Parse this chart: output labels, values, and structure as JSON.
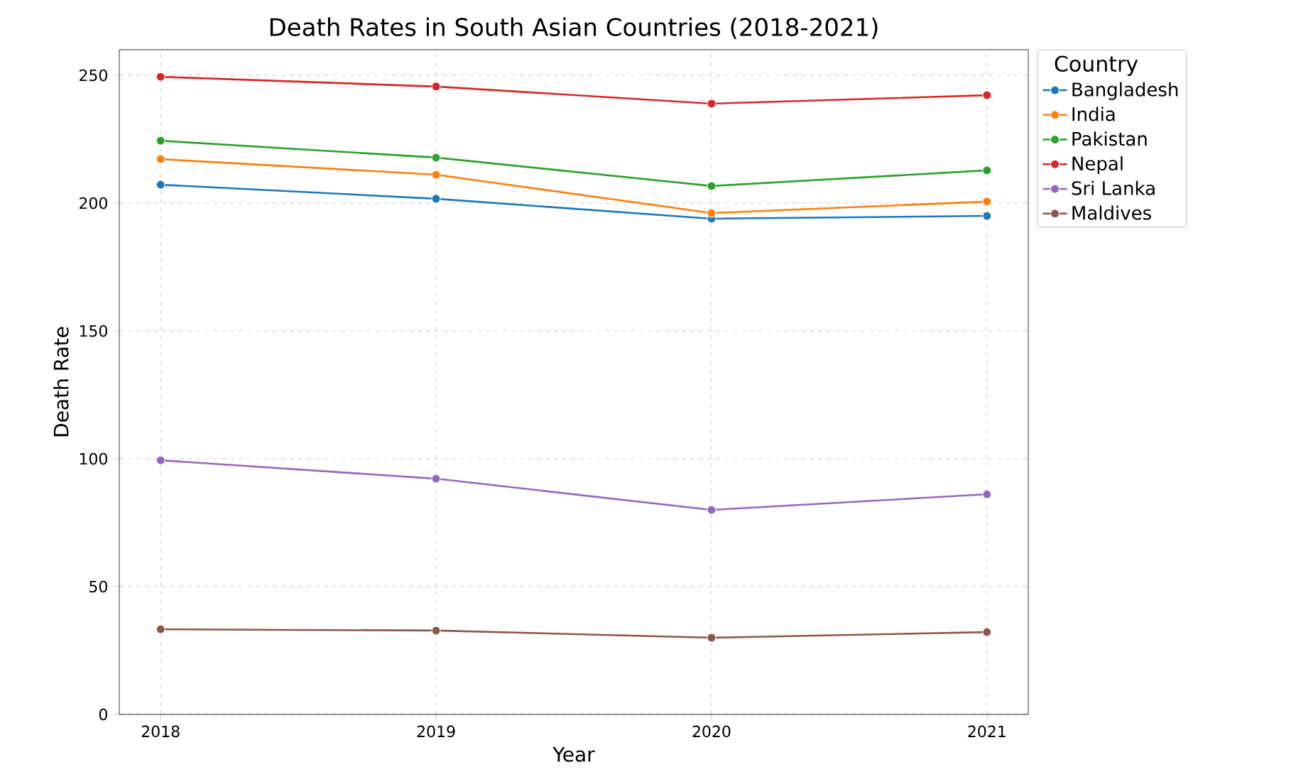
{
  "chart_data": {
    "type": "line",
    "title": "Death Rates in South Asian Countries (2018-2021)",
    "xlabel": "Year",
    "ylabel": "Death Rate",
    "legend_title": "Country",
    "x": [
      2018,
      2019,
      2020,
      2021
    ],
    "series": [
      {
        "name": "Bangladesh",
        "color": "#1f77b4",
        "values": [
          207.2,
          201.7,
          193.9,
          195
        ]
      },
      {
        "name": "India",
        "color": "#ff7f0e",
        "values": [
          217.2,
          211.1,
          196.1,
          200.6
        ]
      },
      {
        "name": "Pakistan",
        "color": "#2ca02c",
        "values": [
          224.4,
          217.8,
          206.7,
          212.8
        ]
      },
      {
        "name": "Nepal",
        "color": "#d62728",
        "values": [
          249.4,
          245.6,
          238.9,
          242.2
        ]
      },
      {
        "name": "Sri Lanka",
        "color": "#9467bd",
        "values": [
          99.4,
          92.2,
          80,
          86.1
        ]
      },
      {
        "name": "Maldives",
        "color": "#8c564b",
        "values": [
          33.3,
          32.8,
          30,
          32.2
        ]
      }
    ],
    "xlim": [
      2017.85,
      2021.15
    ],
    "ylim": [
      0,
      260
    ],
    "xticks": [
      2018,
      2019,
      2020,
      2021
    ],
    "yticks": [
      0,
      50,
      100,
      150,
      200,
      250
    ],
    "grid": true,
    "legend": "top right",
    "marker": "circle",
    "line_style": "solid"
  }
}
